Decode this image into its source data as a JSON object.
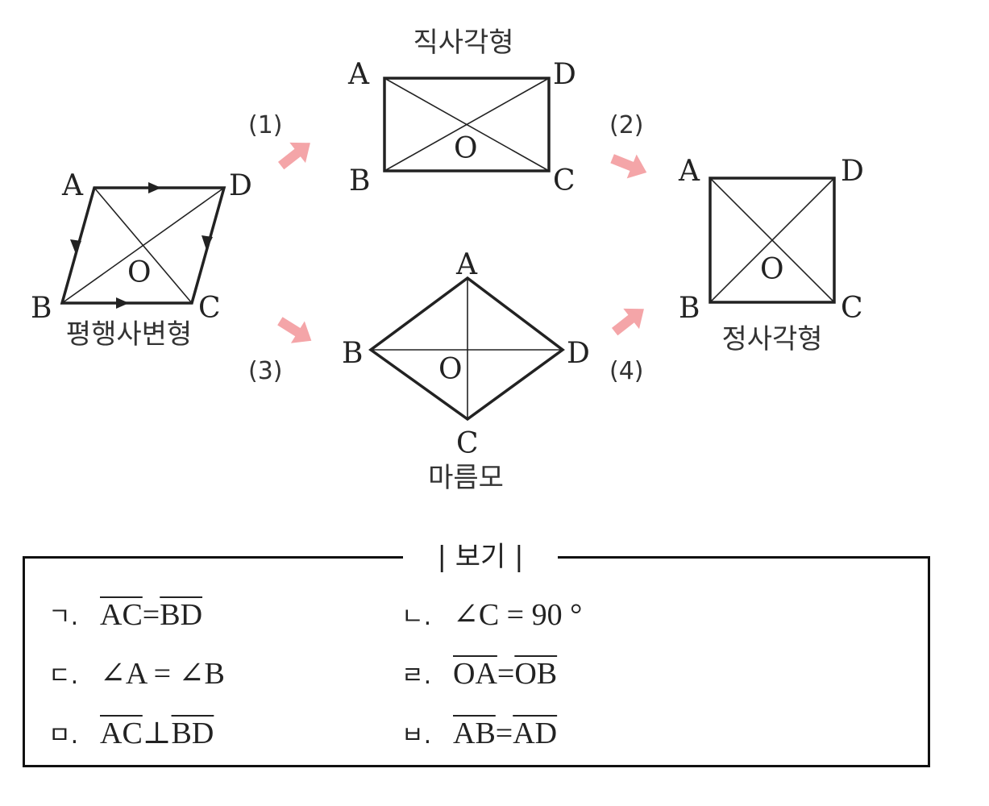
{
  "parallelogram": {
    "name": "평행사변형",
    "labels": {
      "A": "A",
      "B": "B",
      "C": "C",
      "D": "D",
      "O": "O"
    }
  },
  "rectangle": {
    "name": "직사각형",
    "labels": {
      "A": "A",
      "B": "B",
      "C": "C",
      "D": "D",
      "O": "O"
    }
  },
  "rhombus": {
    "name": "마름모",
    "labels": {
      "A": "A",
      "B": "B",
      "C": "C",
      "D": "D",
      "O": "O"
    }
  },
  "square": {
    "name": "정사각형",
    "labels": {
      "A": "A",
      "B": "B",
      "C": "C",
      "D": "D",
      "O": "O"
    }
  },
  "steps": [
    "(1)",
    "(2)",
    "(3)",
    "(4)"
  ],
  "arrow_color": "#f4a5a8",
  "bogi": {
    "title": "| 보기 |",
    "items": [
      {
        "mark": "ㄱ.",
        "left": "AC",
        "op": "=",
        "right": "BD"
      },
      {
        "mark": "ㄴ.",
        "text": "∠C = 90 °"
      },
      {
        "mark": "ㄷ.",
        "text": "∠A = ∠B"
      },
      {
        "mark": "ㄹ.",
        "left": "OA",
        "op": "=",
        "right": "OB"
      },
      {
        "mark": "ㅁ.",
        "left": "AC",
        "op": "⊥",
        "right": "BD"
      },
      {
        "mark": "ㅂ.",
        "left": "AB",
        "op": "=",
        "right": "AD"
      }
    ]
  }
}
